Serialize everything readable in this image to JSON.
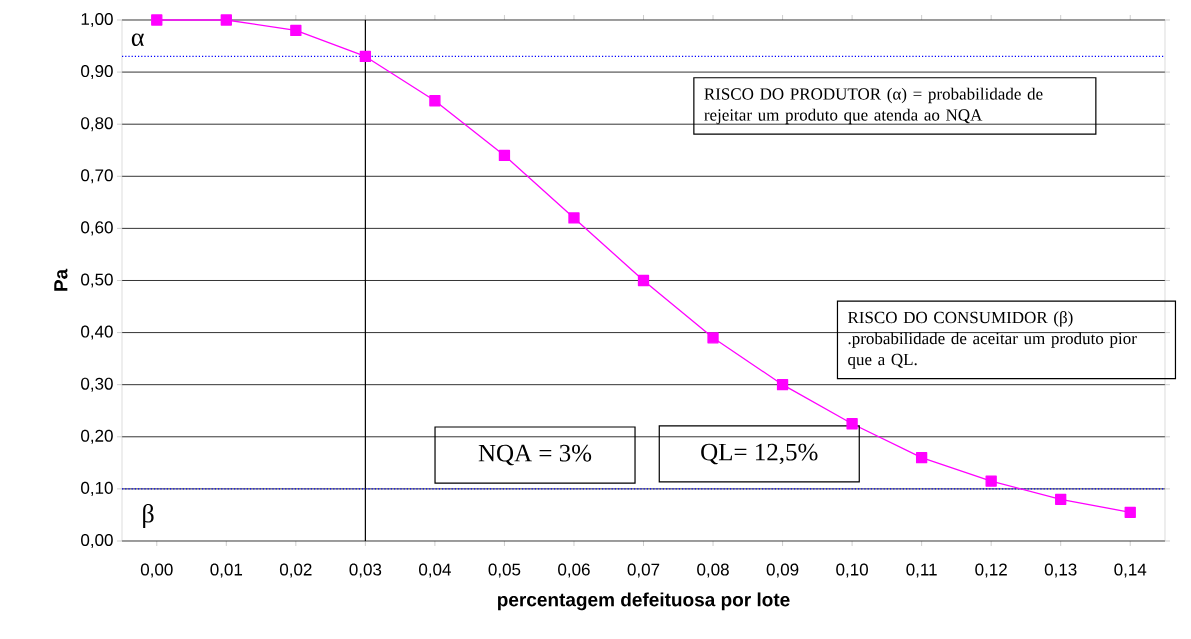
{
  "chart_data": {
    "type": "line",
    "xlabel": "percentagem defeituosa por lote",
    "ylabel": "Pa",
    "x": [
      0.0,
      0.01,
      0.02,
      0.03,
      0.04,
      0.05,
      0.06,
      0.07,
      0.08,
      0.09,
      0.1,
      0.11,
      0.12,
      0.13,
      0.14
    ],
    "series": [
      {
        "color": "#ff00ff",
        "values": [
          1.0,
          1.0,
          0.98,
          0.93,
          0.845,
          0.74,
          0.62,
          0.5,
          0.39,
          0.3,
          0.225,
          0.16,
          0.115,
          0.08,
          0.055
        ]
      }
    ],
    "xlim": [
      -0.005,
      0.145
    ],
    "xticks": [
      {
        "value": 0.0,
        "label": "0,00"
      },
      {
        "value": 0.01,
        "label": "0,01"
      },
      {
        "value": 0.02,
        "label": "0,02"
      },
      {
        "value": 0.03,
        "label": "0,03"
      },
      {
        "value": 0.04,
        "label": "0,04"
      },
      {
        "value": 0.05,
        "label": "0,05"
      },
      {
        "value": 0.06,
        "label": "0,06"
      },
      {
        "value": 0.07,
        "label": "0,07"
      },
      {
        "value": 0.08,
        "label": "0,08"
      },
      {
        "value": 0.09,
        "label": "0,09"
      },
      {
        "value": 0.1,
        "label": "0,10"
      },
      {
        "value": 0.11,
        "label": "0,11"
      },
      {
        "value": 0.12,
        "label": "0,12"
      },
      {
        "value": 0.13,
        "label": "0,13"
      },
      {
        "value": 0.14,
        "label": "0,14"
      }
    ],
    "ylim": [
      0,
      1
    ],
    "yticks": [
      {
        "value": 0.0,
        "label": "0,00"
      },
      {
        "value": 0.1,
        "label": "0,10"
      },
      {
        "value": 0.2,
        "label": "0,20"
      },
      {
        "value": 0.3,
        "label": "0,30"
      },
      {
        "value": 0.4,
        "label": "0,40"
      },
      {
        "value": 0.5,
        "label": "0,50"
      },
      {
        "value": 0.6,
        "label": "0,60"
      },
      {
        "value": 0.7,
        "label": "0,70"
      },
      {
        "value": 0.8,
        "label": "0,80"
      },
      {
        "value": 0.9,
        "label": "0,90"
      },
      {
        "value": 1.0,
        "label": "1,00"
      }
    ],
    "grid": "y",
    "marker": "square",
    "line_style": "solid",
    "ref_lines": [
      {
        "axis": "x",
        "value": 0.03,
        "color": "#000000",
        "line_style": "solid"
      },
      {
        "axis": "y",
        "value": 0.93,
        "color": "#0000ff",
        "line_style": "dotted"
      },
      {
        "axis": "y",
        "value": 0.1,
        "color": "#0000ff",
        "line_style": "dotted"
      }
    ],
    "annotations": [
      "α",
      "β",
      "RISCO DO PRODUTOR (α) = probabilidade de rejeitar um produto que atenda ao NQA",
      "RISCO DO CONSUMIDOR (β) .probabilidade de aceitar um produto pior que a QL.",
      "NQA = 3%",
      "QL= 12,5%"
    ]
  }
}
